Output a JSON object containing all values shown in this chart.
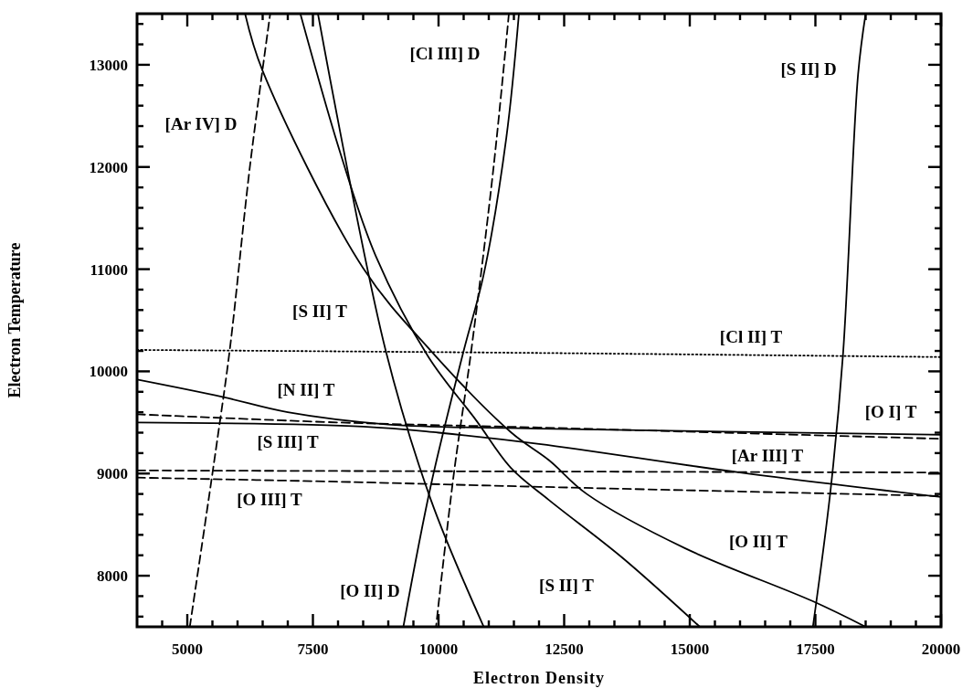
{
  "chart_data": {
    "type": "line",
    "xlabel": "Electron Density",
    "ylabel": "Electron Temperature",
    "xlim": [
      4000,
      20000
    ],
    "ylim": [
      7500,
      13500
    ],
    "xticks": [
      {
        "value": 4500,
        "label": null
      },
      5000,
      {
        "value": 5500,
        "label": null
      },
      {
        "value": 6000,
        "label": null
      },
      {
        "value": 6500,
        "label": null
      },
      {
        "value": 7000,
        "label": null
      },
      7500,
      {
        "value": 8000,
        "label": null
      },
      {
        "value": 8500,
        "label": null
      },
      {
        "value": 9000,
        "label": null
      },
      {
        "value": 9500,
        "label": null
      },
      10000,
      {
        "value": 10500,
        "label": null
      },
      {
        "value": 11000,
        "label": null
      },
      {
        "value": 11500,
        "label": null
      },
      {
        "value": 12000,
        "label": null
      },
      12500,
      {
        "value": 13000,
        "label": null
      },
      {
        "value": 13500,
        "label": null
      },
      {
        "value": 14000,
        "label": null
      },
      {
        "value": 14500,
        "label": null
      },
      15000,
      {
        "value": 15500,
        "label": null
      },
      {
        "value": 16000,
        "label": null
      },
      {
        "value": 16500,
        "label": null
      },
      {
        "value": 17000,
        "label": null
      },
      17500,
      {
        "value": 18000,
        "label": null
      },
      {
        "value": 18500,
        "label": null
      },
      {
        "value": 19000,
        "label": null
      },
      {
        "value": 19500,
        "label": null
      },
      20000
    ],
    "yticks": [
      {
        "value": 7600,
        "label": null
      },
      {
        "value": 7800,
        "label": null
      },
      8000,
      {
        "value": 8200,
        "label": null
      },
      {
        "value": 8400,
        "label": null
      },
      {
        "value": 8600,
        "label": null
      },
      {
        "value": 8800,
        "label": null
      },
      9000,
      {
        "value": 9200,
        "label": null
      },
      {
        "value": 9400,
        "label": null
      },
      {
        "value": 9600,
        "label": null
      },
      {
        "value": 9800,
        "label": null
      },
      10000,
      {
        "value": 10200,
        "label": null
      },
      {
        "value": 10400,
        "label": null
      },
      {
        "value": 10600,
        "label": null
      },
      {
        "value": 10800,
        "label": null
      },
      11000,
      {
        "value": 11200,
        "label": null
      },
      {
        "value": 11400,
        "label": null
      },
      {
        "value": 11600,
        "label": null
      },
      {
        "value": 11800,
        "label": null
      },
      12000,
      {
        "value": 12200,
        "label": null
      },
      {
        "value": 12400,
        "label": null
      },
      {
        "value": 12600,
        "label": null
      },
      {
        "value": 12800,
        "label": null
      },
      13000,
      {
        "value": 13200,
        "label": null
      },
      {
        "value": 13400,
        "label": null
      }
    ],
    "series": [
      {
        "color": "#000000",
        "line_style": "dashed",
        "x": [
          5050,
          5600,
          5850,
          6250,
          6650
        ],
        "values": [
          7500,
          9340,
          10230,
          12020,
          13500
        ]
      },
      {
        "color": "#000000",
        "line_style": "solid",
        "x": [
          6150,
          6500,
          8500,
          9850,
          11450,
          12200,
          12950,
          14900,
          17450,
          18500
        ],
        "values": [
          13500,
          12940,
          11010,
          10200,
          9400,
          9130,
          8800,
          8270,
          7750,
          7500
        ]
      },
      {
        "color": "#000000",
        "line_style": "solid",
        "x": [
          7250,
          8050,
          8750,
          9800,
          10750,
          11450,
          12200,
          13650,
          15200
        ],
        "values": [
          13500,
          12130,
          11130,
          10140,
          9520,
          9050,
          8740,
          8180,
          7500
        ]
      },
      {
        "color": "#000000",
        "line_style": "solid",
        "x": [
          7600,
          8950,
          9850,
          10900
        ],
        "values": [
          13500,
          10200,
          8740,
          7500
        ]
      },
      {
        "color": "#000000",
        "line_style": "dashed",
        "x": [
          11400,
          11100,
          10650,
          10300,
          9950
        ],
        "values": [
          13500,
          12020,
          10200,
          8980,
          7500
        ]
      },
      {
        "color": "#000000",
        "line_style": "solid",
        "x": [
          11600,
          11350,
          10900,
          10500,
          9850,
          9300
        ],
        "values": [
          13500,
          12290,
          10950,
          10200,
          8890,
          7500
        ]
      },
      {
        "color": "#000000",
        "line_style": "solid",
        "x": [
          18500,
          18350,
          18050,
          17800,
          17450
        ],
        "values": [
          13500,
          12910,
          10170,
          8830,
          7500
        ]
      },
      {
        "color": "#000000",
        "line_style": "dotted",
        "x": [
          4000,
          12000,
          20000
        ],
        "values": [
          10210,
          10180,
          10140
        ]
      },
      {
        "color": "#000000",
        "line_style": "solid",
        "x": [
          4000,
          5700,
          7000,
          9000,
          12000,
          20000
        ],
        "values": [
          9920,
          9750,
          9600,
          9480,
          9440,
          9380
        ]
      },
      {
        "color": "#000000",
        "line_style": "dashed",
        "x": [
          4000,
          8000,
          12000,
          20000
        ],
        "values": [
          9580,
          9500,
          9450,
          9340
        ]
      },
      {
        "color": "#000000",
        "line_style": "solid",
        "x": [
          4000,
          8500,
          10000,
          12000,
          16000,
          20000
        ],
        "values": [
          9500,
          9460,
          9400,
          9290,
          9010,
          8770
        ]
      },
      {
        "color": "#000000",
        "line_style": "dashed",
        "x": [
          4000,
          20000
        ],
        "values": [
          9030,
          9010
        ]
      },
      {
        "color": "#000000",
        "line_style": "dashed",
        "x": [
          4000,
          8000,
          12000,
          20000
        ],
        "values": [
          8960,
          8920,
          8870,
          8780
        ]
      }
    ],
    "annotations": [
      "[Ar IV] D",
      "[Cl III] D",
      "[S II] D",
      "[S II] T",
      "[Cl II] T",
      "[N II] T",
      "[O I] T",
      "[S III] T",
      "[Ar III] T",
      "[O III] T",
      "[O II] T",
      "[O II] D",
      "[S II] T"
    ]
  }
}
